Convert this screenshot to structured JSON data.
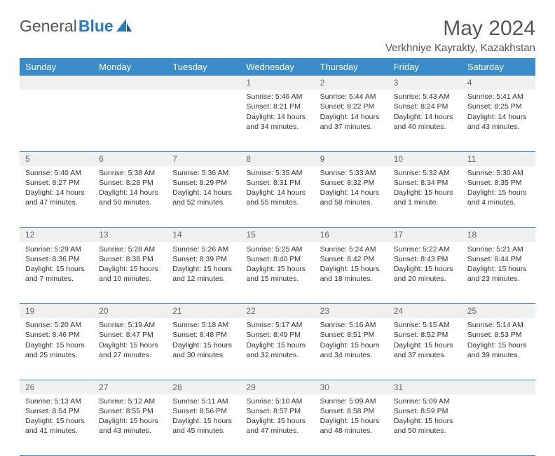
{
  "brand": {
    "part1": "General",
    "part2": "Blue"
  },
  "title": "May 2024",
  "location": "Verkhniye Kayrakty, Kazakhstan",
  "day_headers": [
    "Sunday",
    "Monday",
    "Tuesday",
    "Wednesday",
    "Thursday",
    "Friday",
    "Saturday"
  ],
  "colors": {
    "header_bg": "#3a8bc9",
    "header_text": "#ffffff",
    "daynum_bg": "#eef0f2",
    "text": "#333333",
    "rule": "#3a8bc9"
  },
  "weeks": [
    [
      {
        "n": "",
        "sunrise": "",
        "sunset": "",
        "daylight": ""
      },
      {
        "n": "",
        "sunrise": "",
        "sunset": "",
        "daylight": ""
      },
      {
        "n": "",
        "sunrise": "",
        "sunset": "",
        "daylight": ""
      },
      {
        "n": "1",
        "sunrise": "Sunrise: 5:46 AM",
        "sunset": "Sunset: 8:21 PM",
        "daylight": "Daylight: 14 hours and 34 minutes."
      },
      {
        "n": "2",
        "sunrise": "Sunrise: 5:44 AM",
        "sunset": "Sunset: 8:22 PM",
        "daylight": "Daylight: 14 hours and 37 minutes."
      },
      {
        "n": "3",
        "sunrise": "Sunrise: 5:43 AM",
        "sunset": "Sunset: 8:24 PM",
        "daylight": "Daylight: 14 hours and 40 minutes."
      },
      {
        "n": "4",
        "sunrise": "Sunrise: 5:41 AM",
        "sunset": "Sunset: 8:25 PM",
        "daylight": "Daylight: 14 hours and 43 minutes."
      }
    ],
    [
      {
        "n": "5",
        "sunrise": "Sunrise: 5:40 AM",
        "sunset": "Sunset: 8:27 PM",
        "daylight": "Daylight: 14 hours and 47 minutes."
      },
      {
        "n": "6",
        "sunrise": "Sunrise: 5:38 AM",
        "sunset": "Sunset: 8:28 PM",
        "daylight": "Daylight: 14 hours and 50 minutes."
      },
      {
        "n": "7",
        "sunrise": "Sunrise: 5:36 AM",
        "sunset": "Sunset: 8:29 PM",
        "daylight": "Daylight: 14 hours and 52 minutes."
      },
      {
        "n": "8",
        "sunrise": "Sunrise: 5:35 AM",
        "sunset": "Sunset: 8:31 PM",
        "daylight": "Daylight: 14 hours and 55 minutes."
      },
      {
        "n": "9",
        "sunrise": "Sunrise: 5:33 AM",
        "sunset": "Sunset: 8:32 PM",
        "daylight": "Daylight: 14 hours and 58 minutes."
      },
      {
        "n": "10",
        "sunrise": "Sunrise: 5:32 AM",
        "sunset": "Sunset: 8:34 PM",
        "daylight": "Daylight: 15 hours and 1 minute."
      },
      {
        "n": "11",
        "sunrise": "Sunrise: 5:30 AM",
        "sunset": "Sunset: 8:35 PM",
        "daylight": "Daylight: 15 hours and 4 minutes."
      }
    ],
    [
      {
        "n": "12",
        "sunrise": "Sunrise: 5:29 AM",
        "sunset": "Sunset: 8:36 PM",
        "daylight": "Daylight: 15 hours and 7 minutes."
      },
      {
        "n": "13",
        "sunrise": "Sunrise: 5:28 AM",
        "sunset": "Sunset: 8:38 PM",
        "daylight": "Daylight: 15 hours and 10 minutes."
      },
      {
        "n": "14",
        "sunrise": "Sunrise: 5:26 AM",
        "sunset": "Sunset: 8:39 PM",
        "daylight": "Daylight: 15 hours and 12 minutes."
      },
      {
        "n": "15",
        "sunrise": "Sunrise: 5:25 AM",
        "sunset": "Sunset: 8:40 PM",
        "daylight": "Daylight: 15 hours and 15 minutes."
      },
      {
        "n": "16",
        "sunrise": "Sunrise: 5:24 AM",
        "sunset": "Sunset: 8:42 PM",
        "daylight": "Daylight: 15 hours and 18 minutes."
      },
      {
        "n": "17",
        "sunrise": "Sunrise: 5:22 AM",
        "sunset": "Sunset: 8:43 PM",
        "daylight": "Daylight: 15 hours and 20 minutes."
      },
      {
        "n": "18",
        "sunrise": "Sunrise: 5:21 AM",
        "sunset": "Sunset: 8:44 PM",
        "daylight": "Daylight: 15 hours and 23 minutes."
      }
    ],
    [
      {
        "n": "19",
        "sunrise": "Sunrise: 5:20 AM",
        "sunset": "Sunset: 8:46 PM",
        "daylight": "Daylight: 15 hours and 25 minutes."
      },
      {
        "n": "20",
        "sunrise": "Sunrise: 5:19 AM",
        "sunset": "Sunset: 8:47 PM",
        "daylight": "Daylight: 15 hours and 27 minutes."
      },
      {
        "n": "21",
        "sunrise": "Sunrise: 5:18 AM",
        "sunset": "Sunset: 8:48 PM",
        "daylight": "Daylight: 15 hours and 30 minutes."
      },
      {
        "n": "22",
        "sunrise": "Sunrise: 5:17 AM",
        "sunset": "Sunset: 8:49 PM",
        "daylight": "Daylight: 15 hours and 32 minutes."
      },
      {
        "n": "23",
        "sunrise": "Sunrise: 5:16 AM",
        "sunset": "Sunset: 8:51 PM",
        "daylight": "Daylight: 15 hours and 34 minutes."
      },
      {
        "n": "24",
        "sunrise": "Sunrise: 5:15 AM",
        "sunset": "Sunset: 8:52 PM",
        "daylight": "Daylight: 15 hours and 37 minutes."
      },
      {
        "n": "25",
        "sunrise": "Sunrise: 5:14 AM",
        "sunset": "Sunset: 8:53 PM",
        "daylight": "Daylight: 15 hours and 39 minutes."
      }
    ],
    [
      {
        "n": "26",
        "sunrise": "Sunrise: 5:13 AM",
        "sunset": "Sunset: 8:54 PM",
        "daylight": "Daylight: 15 hours and 41 minutes."
      },
      {
        "n": "27",
        "sunrise": "Sunrise: 5:12 AM",
        "sunset": "Sunset: 8:55 PM",
        "daylight": "Daylight: 15 hours and 43 minutes."
      },
      {
        "n": "28",
        "sunrise": "Sunrise: 5:11 AM",
        "sunset": "Sunset: 8:56 PM",
        "daylight": "Daylight: 15 hours and 45 minutes."
      },
      {
        "n": "29",
        "sunrise": "Sunrise: 5:10 AM",
        "sunset": "Sunset: 8:57 PM",
        "daylight": "Daylight: 15 hours and 47 minutes."
      },
      {
        "n": "30",
        "sunrise": "Sunrise: 5:09 AM",
        "sunset": "Sunset: 8:58 PM",
        "daylight": "Daylight: 15 hours and 48 minutes."
      },
      {
        "n": "31",
        "sunrise": "Sunrise: 5:09 AM",
        "sunset": "Sunset: 8:59 PM",
        "daylight": "Daylight: 15 hours and 50 minutes."
      },
      {
        "n": "",
        "sunrise": "",
        "sunset": "",
        "daylight": ""
      }
    ]
  ]
}
